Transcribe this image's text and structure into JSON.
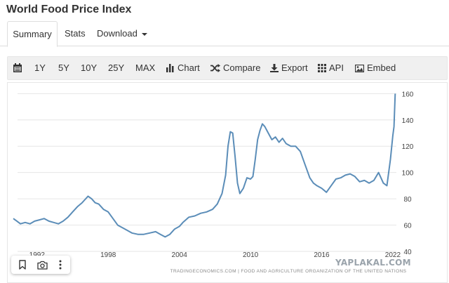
{
  "page": {
    "title": "World Food Price Index"
  },
  "tabs": [
    {
      "label": "Summary",
      "active": true
    },
    {
      "label": "Stats"
    },
    {
      "label": "Download"
    }
  ],
  "toolbar": {
    "ranges": [
      "1Y",
      "5Y",
      "10Y",
      "25Y",
      "MAX"
    ],
    "chart_label": "Chart",
    "compare_label": "Compare",
    "export_label": "Export",
    "api_label": "API",
    "embed_label": "Embed"
  },
  "chart_data": {
    "type": "line",
    "title": "",
    "xlabel": "",
    "ylabel": "",
    "x_tick_labels": [
      "1992",
      "1998",
      "2004",
      "2010",
      "2016",
      "2022"
    ],
    "y_tick_labels": [
      "40",
      "60",
      "80",
      "100",
      "120",
      "140",
      "160"
    ],
    "xlim": [
      1990,
      2022.3
    ],
    "ylim": [
      40,
      165
    ],
    "y_axis_position": "right",
    "grid": "horizontal",
    "line_color": "#5b8db8",
    "source": "TRADINGECONOMICS.COM  |  FOOD AND AGRICULTURE ORGANIZATION OF THE UNITED NATIONS",
    "series": [
      {
        "x": [
          1990.0,
          1990.3,
          1990.6,
          1991.0,
          1991.4,
          1991.8,
          1992.2,
          1992.6,
          1993.0,
          1993.4,
          1993.8,
          1994.2,
          1994.6,
          1995.0,
          1995.4,
          1995.8,
          1996.0,
          1996.3,
          1996.6,
          1996.9,
          1997.2,
          1997.6,
          1998.0,
          1998.4,
          1998.8,
          1999.2,
          1999.6,
          2000.0,
          2000.5,
          2001.0,
          2001.5,
          2002.0,
          2002.4,
          2002.8,
          2003.2,
          2003.6,
          2004.0,
          2004.3,
          2004.8,
          2005.3,
          2005.8,
          2006.3,
          2006.8,
          2007.2,
          2007.6,
          2007.9,
          2008.1,
          2008.3,
          2008.5,
          2008.7,
          2008.9,
          2009.1,
          2009.4,
          2009.7,
          2010.0,
          2010.2,
          2010.4,
          2010.6,
          2010.8,
          2011.0,
          2011.2,
          2011.5,
          2011.8,
          2012.1,
          2012.4,
          2012.7,
          2013.0,
          2013.4,
          2013.8,
          2014.2,
          2014.6,
          2015.0,
          2015.3,
          2015.6,
          2016.0,
          2016.4,
          2016.8,
          2017.2,
          2017.6,
          2018.0,
          2018.4,
          2018.8,
          2019.2,
          2019.6,
          2020.0,
          2020.4,
          2020.8,
          2021.2,
          2021.5,
          2021.8,
          2022.0,
          2022.1,
          2022.2
        ],
        "y": [
          65,
          63,
          61,
          62,
          61,
          63,
          64,
          65,
          63,
          62,
          61,
          63,
          66,
          70,
          74,
          77,
          79,
          82,
          80,
          77,
          76,
          72,
          70,
          65,
          60,
          58,
          56,
          54,
          53,
          53,
          54,
          55,
          53,
          51,
          53,
          57,
          59,
          62,
          66,
          67,
          69,
          70,
          72,
          76,
          84,
          98,
          120,
          131,
          130,
          112,
          92,
          84,
          88,
          96,
          95,
          97,
          110,
          125,
          132,
          137,
          135,
          130,
          125,
          127,
          123,
          126,
          122,
          120,
          120,
          116,
          106,
          96,
          92,
          90,
          88,
          85,
          90,
          95,
          96,
          98,
          99,
          97,
          93,
          94,
          92,
          94,
          100,
          92,
          90,
          110,
          128,
          135,
          160
        ]
      }
    ]
  },
  "bottom_tools": [
    "bookmark-icon",
    "camera-icon",
    "more-icon"
  ],
  "watermark": {
    "text": "YAPLAKAL.COM"
  }
}
